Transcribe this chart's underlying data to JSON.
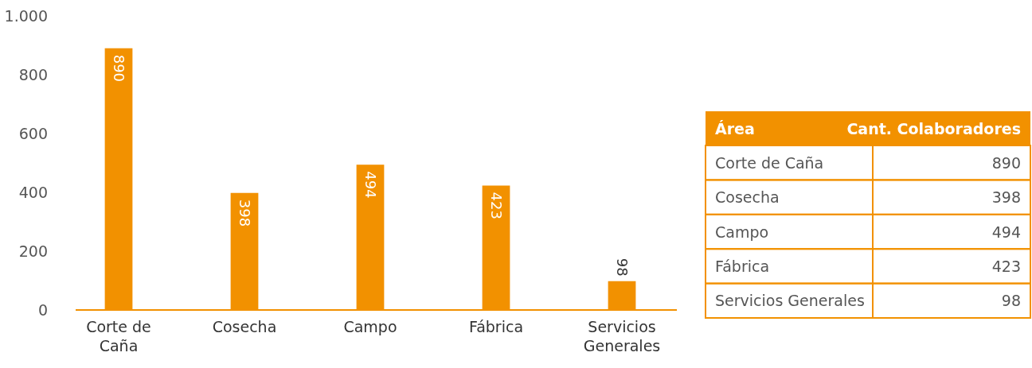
{
  "chart_data": [
    {
      "type": "bar",
      "categories": [
        "Corte de Caña",
        "Cosecha",
        "Campo",
        "Fábrica",
        "Servicios Generales"
      ],
      "values": [
        890,
        398,
        494,
        423,
        98
      ],
      "color": "#f29100",
      "ylim": [
        0,
        1000
      ],
      "yticks": [
        0,
        200,
        400,
        600,
        800,
        {
          "value": 1000,
          "label": "1.000"
        }
      ],
      "grid": false,
      "data_labels": true
    },
    {
      "type": "other",
      "color": "#f29100",
      "annotations": [
        "Área",
        "Cant. Colaboradores",
        "Corte de Caña",
        "890",
        "Cosecha",
        "398",
        "Campo",
        "494",
        "Fábrica",
        "423",
        "Servicios Generales",
        "98"
      ]
    }
  ]
}
